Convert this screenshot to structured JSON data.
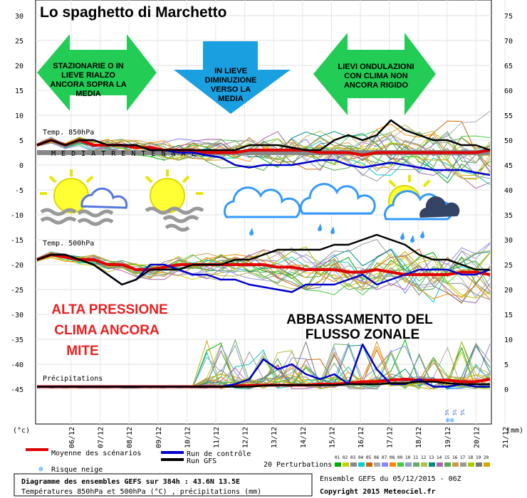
{
  "title": "Lo spaghetto di Marchetto",
  "chart_data": {
    "type": "line",
    "y_left_ticks": [
      "30",
      "25",
      "20",
      "15",
      "10",
      "5",
      "0",
      "-5",
      "-10",
      "-15",
      "-20",
      "-25",
      "-30",
      "-35",
      "-40",
      "-45"
    ],
    "y_right_ticks": [
      "75",
      "70",
      "65",
      "60",
      "55",
      "50",
      "45",
      "40",
      "35",
      "30",
      "25",
      "20",
      "15",
      "10",
      "5",
      "0"
    ],
    "y_left_unit": "(°c)",
    "y_right_unit": "(mm)",
    "x_ticks": [
      "06/12",
      "07/12",
      "08/12",
      "09/12",
      "10/12",
      "11/12",
      "12/12",
      "13/12",
      "14/12",
      "15/12",
      "16/12",
      "17/12",
      "18/12",
      "19/12",
      "20/12",
      "21/12"
    ],
    "panel_labels": {
      "t850": "Temp. 850hPa",
      "t500": "Temp. 500hPa",
      "precip": "Précipitations"
    },
    "mean_line_label": "M E D I A    T R E N T E N N A L E",
    "mean_line_value": 2.5,
    "snow_labels": [
      "5%",
      "5%",
      "5%"
    ],
    "series": [
      {
        "name": "Moyenne des scénarios",
        "color": "#e00000",
        "t850": [
          4,
          5,
          4,
          5,
          4,
          4,
          4,
          3.5,
          3.5,
          3,
          3,
          3,
          2.5,
          2.5,
          2.5,
          3,
          3,
          3,
          3,
          3,
          2.5,
          2.5,
          2.5,
          2,
          2.5,
          2.5,
          2.5,
          2.5,
          2.5,
          2.5,
          2.5,
          2.5,
          3
        ],
        "t500": [
          -19,
          -18,
          -18.5,
          -19,
          -19,
          -20,
          -20,
          -21,
          -21,
          -20.5,
          -20,
          -20,
          -20,
          -20,
          -20,
          -20,
          -20,
          -20.5,
          -20.5,
          -21,
          -21,
          -21,
          -21.5,
          -21.5,
          -21,
          -21.5,
          -22,
          -22,
          -22,
          -22,
          -21.5,
          -21.5,
          -22
        ],
        "precip": [
          0.5,
          0.5,
          0.5,
          0.5,
          0.5,
          0.5,
          0.5,
          0.5,
          0.5,
          0.5,
          0.5,
          0.5,
          0.5,
          0.5,
          0.7,
          0.7,
          0.8,
          0.8,
          0.8,
          0.8,
          1,
          1,
          1.2,
          1.5,
          1.5,
          1.8,
          2,
          1.8,
          1.8,
          1.8,
          1.5,
          1.5,
          2
        ]
      },
      {
        "name": "Run de contrôle",
        "color": "#0000cc",
        "t850": [
          4,
          5,
          4,
          5,
          5,
          4,
          4,
          4,
          3,
          3,
          2.5,
          2.5,
          2,
          1.5,
          0,
          -0.5,
          0,
          0,
          0,
          0.5,
          1,
          1,
          0,
          -0.5,
          0,
          0.5,
          0,
          -0.5,
          -1,
          -1,
          -1,
          -1.5,
          -2
        ],
        "t500": [
          -19,
          -18,
          -18,
          -19,
          -20,
          -22,
          -24,
          -23,
          -20,
          -20,
          -21,
          -22,
          -22,
          -23,
          -23,
          -24,
          -24.5,
          -25,
          -25.5,
          -24,
          -24,
          -24,
          -23,
          -22,
          -24,
          -23,
          -22,
          -21,
          -21,
          -21,
          -22,
          -22,
          -21
        ],
        "precip": [
          0.5,
          0.5,
          0.5,
          0.5,
          0.5,
          0.5,
          0.5,
          0.5,
          0.5,
          0.5,
          0.5,
          0.5,
          0.5,
          0.5,
          1,
          2,
          6,
          4,
          5,
          3,
          2,
          3,
          1,
          9,
          4,
          1,
          1,
          2,
          0.5,
          0.5,
          1,
          0.5,
          0.5
        ]
      },
      {
        "name": "Run GFS",
        "color": "#000000",
        "t850": [
          4,
          5,
          4,
          5,
          5,
          4,
          4,
          4,
          3,
          3,
          3,
          3,
          3,
          3,
          3,
          4,
          4,
          4,
          3.5,
          3,
          3,
          5,
          6,
          5,
          6,
          9,
          7,
          6,
          5,
          5,
          4,
          4,
          3
        ],
        "t500": [
          -19,
          -18,
          -18,
          -19,
          -20,
          -22,
          -24,
          -23,
          -21,
          -21,
          -21,
          -20,
          -20,
          -20,
          -19,
          -19,
          -18,
          -17,
          -17,
          -17,
          -17,
          -16,
          -16,
          -15,
          -14,
          -15,
          -16,
          -18,
          -19,
          -19,
          -20,
          -21,
          -21
        ],
        "precip": [
          0.5,
          0.5,
          0.5,
          0.5,
          0.5,
          0.5,
          0.5,
          0.5,
          0.5,
          0.5,
          0.5,
          0.5,
          0.5,
          0.5,
          0.5,
          0.5,
          0.7,
          0.8,
          0.8,
          0.8,
          0.8,
          0.8,
          1,
          1,
          1,
          1.2,
          1.2,
          1.5,
          1.5,
          1.2,
          1,
          1,
          1
        ]
      }
    ],
    "ensemble_colors": [
      "#00aa00",
      "#cccc00",
      "#888888",
      "#00cccc",
      "#cc6600",
      "#aaaaaa",
      "#8888ff",
      "#ff8800",
      "#44cc44",
      "#9999cc",
      "#66aa66",
      "#bbbb44",
      "#008888",
      "#aa66aa",
      "#55aa55",
      "#cc9944",
      "#999999",
      "#aacc00",
      "#777777",
      "#ccaa00"
    ]
  },
  "annotations": {
    "arrow_left": "STAZIONARIE O IN LIEVE RIALZO ANCORA SOPRA LA MEDIA",
    "arrow_down": "IN LIEVE DIMINUZIONE VERSO LA MEDIA",
    "arrow_right": "LIEVI ONDULAZIONI CON CLIMA NON ANCORA RIGIDO",
    "red_text_lines": [
      "ALTA PRESSIONE",
      "CLIMA ANCORA",
      "MITE"
    ],
    "black_text_lines": [
      "ABBASSAMENTO DEL",
      "FLUSSO ZONALE"
    ]
  },
  "legend": {
    "mean": "Moyenne des scénarios",
    "control": "Run de contrôle",
    "gfs": "Run GFS",
    "snow": "Risque neige",
    "perturbations": "20 Perturbations",
    "perturbation_numbers": [
      "01",
      "02",
      "03",
      "04",
      "05",
      "06",
      "07",
      "08",
      "09",
      "10",
      "11",
      "12",
      "13",
      "14",
      "15",
      "16",
      "17",
      "18",
      "19",
      "20"
    ]
  },
  "footer": {
    "box_line1": "Diagramme des ensembles GEFS sur 384h : 43.6N 13.5E",
    "box_line2": "Températures 850hPa et 500hPa (°C) , précipitations (mm)",
    "ensemble_run": "Ensemble GEFS du 05/12/2015 - 06Z",
    "copyright": "Copyright 2015 Meteociel.fr"
  },
  "colors": {
    "plot_border": "#000000",
    "grid": "#cccccc",
    "mean_bar": "#888888",
    "annotation_red": "#e82020",
    "arrow_green": "#22cc55",
    "arrow_blue": "#1aa0e0"
  }
}
